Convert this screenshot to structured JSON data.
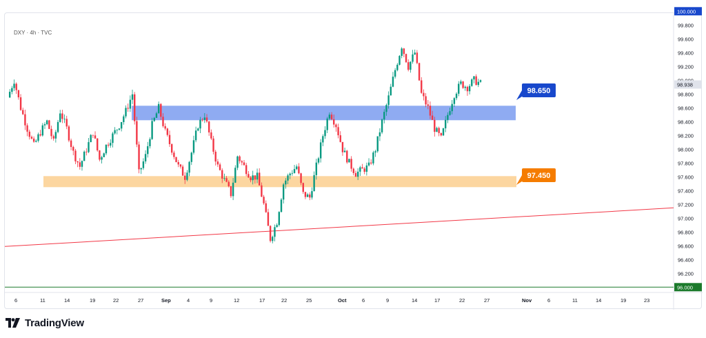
{
  "chart_title": "DXY · 4h · TVC",
  "brand": "TradingView",
  "chart_data": {
    "type": "candlestick",
    "symbol": "DXY",
    "interval": "4h",
    "source": "TVC",
    "y_ticks": [
      "99.800",
      "99.600",
      "99.400",
      "99.200",
      "99.000",
      "98.800",
      "98.600",
      "98.400",
      "98.200",
      "98.000",
      "97.800",
      "97.600",
      "97.400",
      "97.200",
      "97.000",
      "96.800",
      "96.600",
      "96.400",
      "96.200"
    ],
    "ylim": [
      95.9,
      100.0
    ],
    "x_ticks": [
      "6",
      "11",
      "14",
      "19",
      "22",
      "27",
      "Sep",
      "4",
      "9",
      "12",
      "17",
      "22",
      "25",
      "Oct",
      "6",
      "9",
      "14",
      "17",
      "22",
      "27",
      "Nov",
      "6",
      "11",
      "14",
      "19",
      "23"
    ],
    "last_price": "98.938",
    "top_label": "100.000",
    "bottom_label": "96.000",
    "zones": [
      {
        "label": "98.650",
        "low": 98.42,
        "high": 98.63,
        "color": "#7b9cf0",
        "callout_color": "#1848cc"
      },
      {
        "label": "97.450",
        "low": 97.45,
        "high": 97.61,
        "color": "#fbcf8f",
        "callout_color": "#f57c00"
      }
    ],
    "trendline": {
      "from": 96.59,
      "to": 97.15,
      "color": "#f23645"
    },
    "support_line": {
      "value": 96.0,
      "color": "#1b7a2b"
    },
    "path_closes": [
      98.75,
      99.0,
      98.6,
      98.3,
      98.05,
      98.25,
      98.4,
      98.1,
      98.55,
      98.3,
      97.95,
      97.75,
      98.0,
      98.25,
      97.85,
      98.05,
      98.2,
      98.35,
      98.55,
      98.8,
      97.65,
      97.9,
      98.35,
      98.6,
      98.25,
      98.0,
      97.75,
      97.6,
      97.95,
      98.35,
      98.5,
      98.1,
      97.75,
      97.55,
      97.35,
      97.9,
      97.75,
      97.6,
      97.6,
      97.2,
      96.7,
      96.95,
      97.5,
      97.65,
      97.75,
      97.35,
      97.3,
      97.75,
      98.2,
      98.55,
      98.35,
      98.0,
      97.8,
      97.65,
      97.7,
      97.75,
      98.0,
      98.4,
      98.75,
      99.15,
      99.5,
      99.2,
      99.4,
      98.8,
      98.6,
      98.3,
      98.15,
      98.5,
      98.8,
      98.95,
      98.9,
      99.0,
      98.95
    ]
  }
}
